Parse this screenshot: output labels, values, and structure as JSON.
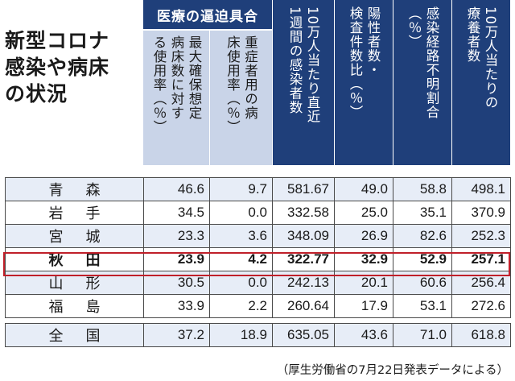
{
  "title": [
    "新型コロナ",
    "感染や病床",
    "の状況"
  ],
  "header": {
    "group_label": "医療の逼迫具合",
    "columns": [
      "最大確保想定\n病床数に対す\nる使用率（％）",
      "重症者用の病\n床使用率（％）",
      "10万人当たり直近\n1週間の感染者数",
      "陽性者数・\n検査件数比（％）",
      "感染経路不明割合\n（％）",
      "10万人当たりの\n療養者数"
    ]
  },
  "rows": [
    {
      "pref": "青森",
      "values": [
        "46.6",
        "9.7",
        "581.67",
        "49.0",
        "58.8",
        "498.1"
      ]
    },
    {
      "pref": "岩手",
      "values": [
        "34.5",
        "0.0",
        "332.58",
        "25.0",
        "35.1",
        "370.9"
      ]
    },
    {
      "pref": "宮城",
      "values": [
        "23.3",
        "3.6",
        "348.09",
        "26.9",
        "82.6",
        "252.3"
      ]
    },
    {
      "pref": "秋田",
      "values": [
        "23.9",
        "4.2",
        "322.77",
        "32.9",
        "52.9",
        "257.1"
      ]
    },
    {
      "pref": "山形",
      "values": [
        "30.5",
        "0.0",
        "242.13",
        "20.1",
        "60.6",
        "256.4"
      ]
    },
    {
      "pref": "福島",
      "values": [
        "33.9",
        "2.2",
        "260.64",
        "17.9",
        "53.1",
        "272.6"
      ]
    }
  ],
  "national": {
    "pref": "全国",
    "values": [
      "37.2",
      "18.9",
      "635.05",
      "43.6",
      "71.0",
      "618.8"
    ]
  },
  "source": "（厚生労働省の7月22日発表データによる）",
  "colors": {
    "navy": "#1f3f7a",
    "light_blue": "#c9d4e8",
    "zebra": "#e7edf7",
    "highlight_red": "#c0202a"
  }
}
